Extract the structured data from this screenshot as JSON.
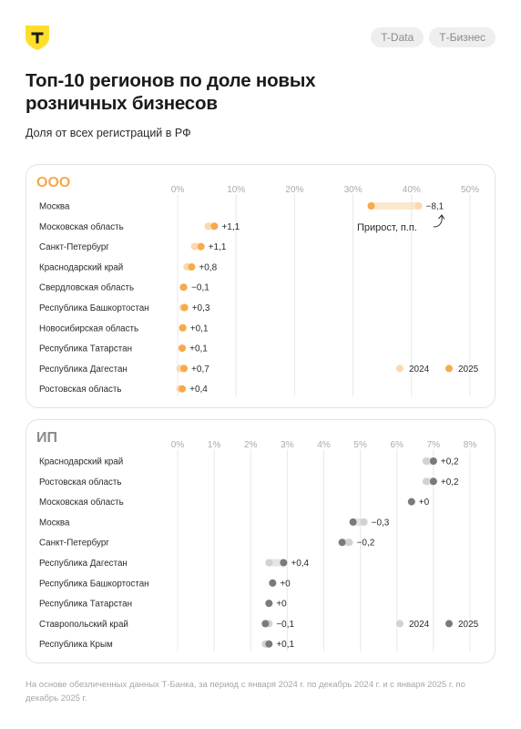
{
  "header": {
    "pills": [
      "T-Data",
      "Т-Бизнес"
    ],
    "title": "Топ-10 регионов по доле новых розничных бизнесов",
    "subtitle": "Доля от всех регистраций в РФ"
  },
  "colors": {
    "ooo_2024": "#fad9ad",
    "ooo_2025": "#f7a94b",
    "ip_2024": "#d2d2d2",
    "ip_2025": "#7a7a7a",
    "logo_yellow": "#ffdd2d",
    "grid": "#e8e8e8"
  },
  "icons": {
    "logo": "tbank-shield-icon",
    "annotation": "curved-arrow-icon"
  },
  "chart_data": [
    {
      "type": "dot-range",
      "title": "ООО",
      "xlim": [
        0,
        50
      ],
      "ticks": [
        0,
        10,
        20,
        30,
        40,
        50
      ],
      "tick_labels": [
        "0%",
        "10%",
        "20%",
        "30%",
        "40%",
        "50%"
      ],
      "legend": [
        {
          "label": "2024"
        },
        {
          "label": "2025"
        }
      ],
      "legend_placement": "bottom-right",
      "annotation": "Прирост, п.п.",
      "categories": [
        "Москва",
        "Московская область",
        "Санкт-Петербург",
        "Краснодарский край",
        "Свердловская область",
        "Республика Башкортостан",
        "Новосибирская область",
        "Республика Татарстан",
        "Республика Дагестан",
        "Ростовская область"
      ],
      "series": [
        {
          "name": "2024",
          "values": [
            41.2,
            5.2,
            2.9,
            1.6,
            1.1,
            0.9,
            0.8,
            0.7,
            0.4,
            0.4
          ]
        },
        {
          "name": "2025",
          "values": [
            33.1,
            6.3,
            4.0,
            2.4,
            1.0,
            1.2,
            0.9,
            0.8,
            1.1,
            0.8
          ]
        }
      ],
      "delta_labels": [
        "−8,1",
        "+1,1",
        "+1,1",
        "+0,8",
        "−0,1",
        "+0,3",
        "+0,1",
        "+0,1",
        "+0,7",
        "+0,4"
      ]
    },
    {
      "type": "dot-range",
      "title": "ИП",
      "xlim": [
        0,
        8
      ],
      "ticks": [
        0,
        1,
        2,
        3,
        4,
        5,
        6,
        7,
        8
      ],
      "tick_labels": [
        "0%",
        "1%",
        "2%",
        "3%",
        "4%",
        "5%",
        "6%",
        "7%",
        "8%"
      ],
      "legend": [
        {
          "label": "2024"
        },
        {
          "label": "2025"
        }
      ],
      "legend_placement": "bottom-right",
      "categories": [
        "Краснодарский край",
        "Ростовская область",
        "Московская область",
        "Москва",
        "Санкт-Петербург",
        "Республика Дагестан",
        "Республика Башкортостан",
        "Республика Татарстан",
        "Ставропольский край",
        "Республика Крым"
      ],
      "series": [
        {
          "name": "2024",
          "values": [
            6.8,
            6.8,
            6.4,
            5.1,
            4.7,
            2.5,
            2.6,
            2.5,
            2.5,
            2.4
          ]
        },
        {
          "name": "2025",
          "values": [
            7.0,
            7.0,
            6.4,
            4.8,
            4.5,
            2.9,
            2.6,
            2.5,
            2.4,
            2.5
          ]
        }
      ],
      "delta_labels": [
        "+0,2",
        "+0,2",
        "+0",
        "−0,3",
        "−0,2",
        "+0,4",
        "+0",
        "+0",
        "−0,1",
        "+0,1"
      ]
    }
  ],
  "footnote": "На основе обезличенных данных Т-Банка, за период с января 2024 г. по декабрь 2024 г. и с января 2025 г. по декабрь 2025 г."
}
